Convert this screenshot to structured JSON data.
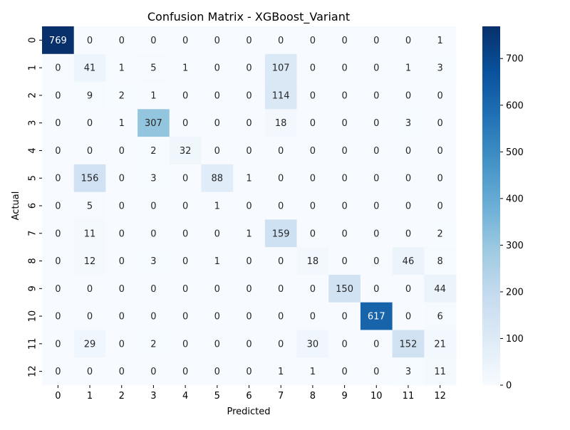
{
  "chart_data": {
    "type": "heatmap",
    "title": "Confusion Matrix - XGBoost_Variant",
    "xlabel": "Predicted",
    "ylabel": "Actual",
    "x_labels": [
      "0",
      "1",
      "2",
      "3",
      "4",
      "5",
      "6",
      "7",
      "8",
      "9",
      "10",
      "11",
      "12"
    ],
    "y_labels": [
      "0",
      "1",
      "2",
      "3",
      "4",
      "5",
      "6",
      "7",
      "8",
      "9",
      "10",
      "11",
      "12"
    ],
    "matrix": [
      [
        769,
        0,
        0,
        0,
        0,
        0,
        0,
        0,
        0,
        0,
        0,
        0,
        1
      ],
      [
        0,
        41,
        1,
        5,
        1,
        0,
        0,
        107,
        0,
        0,
        0,
        1,
        3
      ],
      [
        0,
        9,
        2,
        1,
        0,
        0,
        0,
        114,
        0,
        0,
        0,
        0,
        0
      ],
      [
        0,
        0,
        1,
        307,
        0,
        0,
        0,
        18,
        0,
        0,
        0,
        3,
        0
      ],
      [
        0,
        0,
        0,
        2,
        32,
        0,
        0,
        0,
        0,
        0,
        0,
        0,
        0
      ],
      [
        0,
        156,
        0,
        3,
        0,
        88,
        1,
        0,
        0,
        0,
        0,
        0,
        0
      ],
      [
        0,
        5,
        0,
        0,
        0,
        1,
        0,
        0,
        0,
        0,
        0,
        0,
        0
      ],
      [
        0,
        11,
        0,
        0,
        0,
        0,
        1,
        159,
        0,
        0,
        0,
        0,
        2
      ],
      [
        0,
        12,
        0,
        3,
        0,
        1,
        0,
        0,
        18,
        0,
        0,
        46,
        8
      ],
      [
        0,
        0,
        0,
        0,
        0,
        0,
        0,
        0,
        0,
        150,
        0,
        0,
        44
      ],
      [
        0,
        0,
        0,
        0,
        0,
        0,
        0,
        0,
        0,
        0,
        617,
        0,
        6
      ],
      [
        0,
        29,
        0,
        2,
        0,
        0,
        0,
        0,
        30,
        0,
        0,
        152,
        21
      ],
      [
        0,
        0,
        0,
        0,
        0,
        0,
        0,
        1,
        1,
        0,
        0,
        3,
        11
      ]
    ],
    "colorbar": {
      "colormap": "Blues",
      "min": 0,
      "max": 769,
      "ticks": [
        0,
        100,
        200,
        300,
        400,
        500,
        600,
        700
      ]
    }
  }
}
